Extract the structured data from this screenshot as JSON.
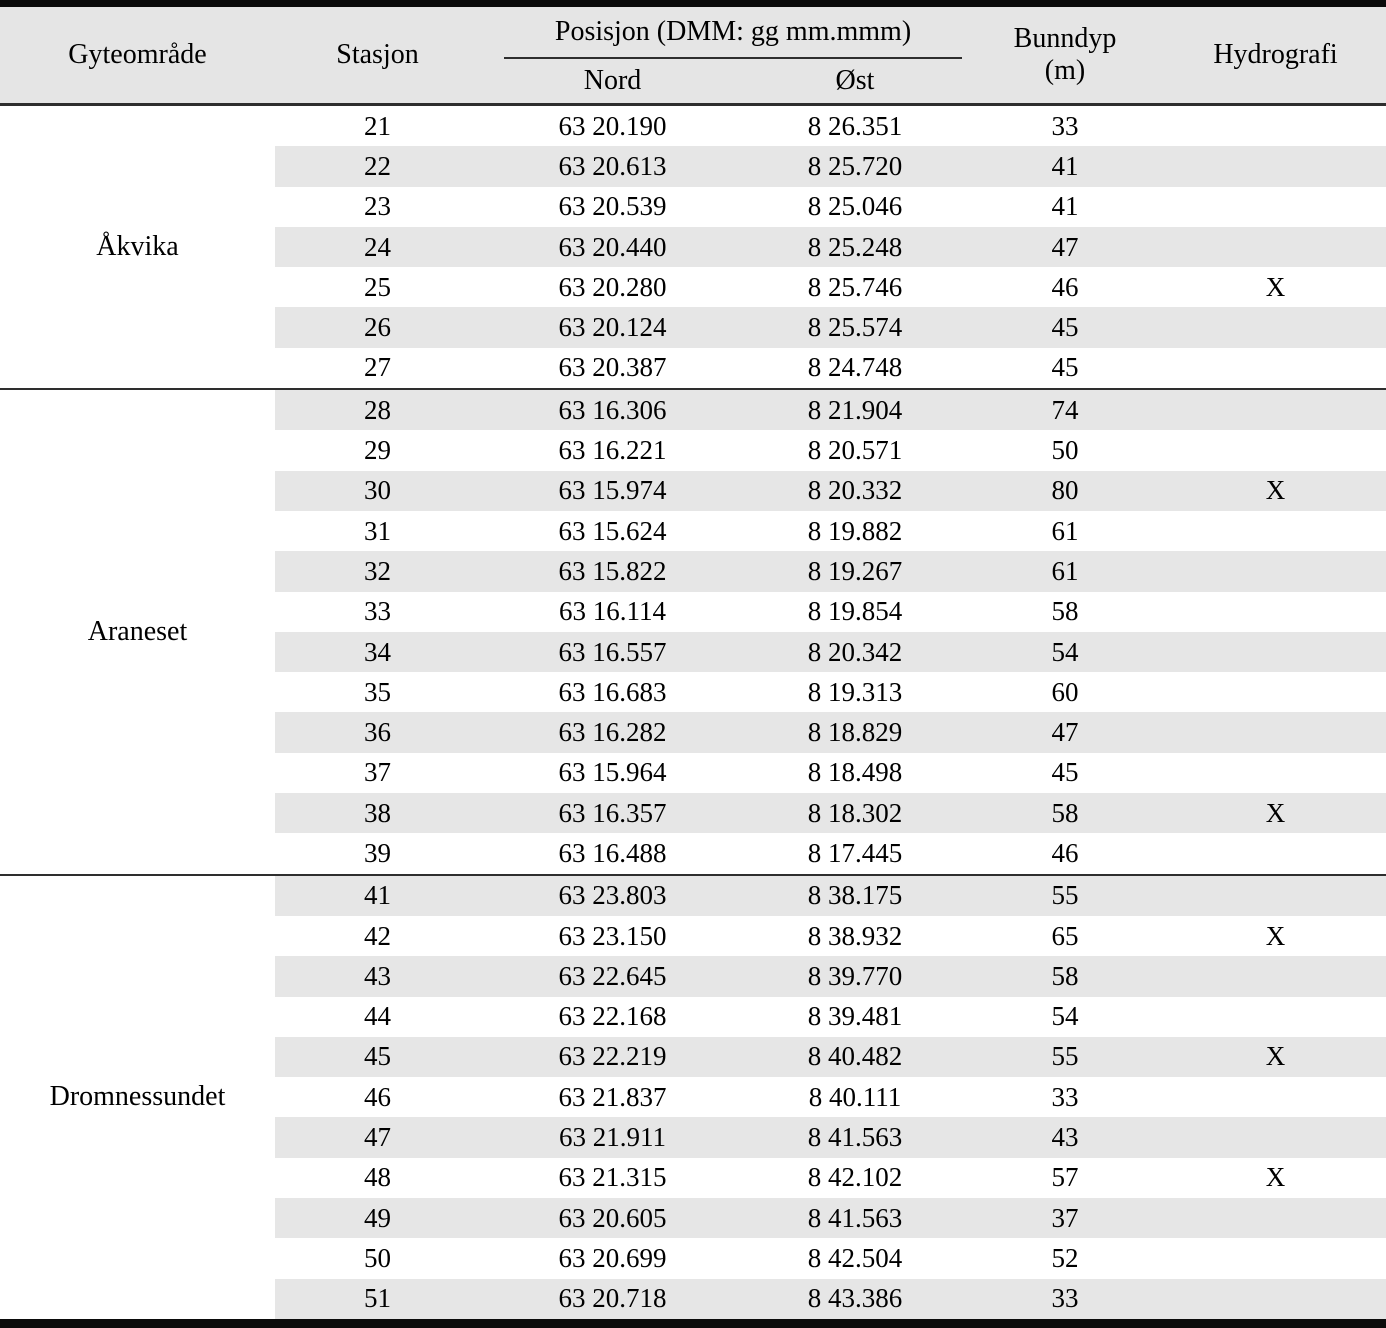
{
  "table": {
    "header": {
      "area": "Gyteområde",
      "station": "Stasjon",
      "position": "Posisjon (DMM: gg mm.mmm)",
      "north": "Nord",
      "east": "Øst",
      "depth_line1": "Bunndyp",
      "depth_line2": "(m)",
      "hydrography": "Hydrografi"
    },
    "colors": {
      "row_shade": "#e6e6e6",
      "header_bg": "#e5e5e5",
      "rule_heavy": "#0b0b0b",
      "rule_medium": "#2e2e2e"
    },
    "groups": [
      {
        "id": "akvika",
        "area": "Åkvika",
        "rows": [
          {
            "station": "21",
            "nord": "63 20.190",
            "ost": "8 26.351",
            "depth": "33",
            "hydro": ""
          },
          {
            "station": "22",
            "nord": "63 20.613",
            "ost": "8 25.720",
            "depth": "41",
            "hydro": ""
          },
          {
            "station": "23",
            "nord": "63 20.539",
            "ost": "8 25.046",
            "depth": "41",
            "hydro": ""
          },
          {
            "station": "24",
            "nord": "63 20.440",
            "ost": "8 25.248",
            "depth": "47",
            "hydro": ""
          },
          {
            "station": "25",
            "nord": "63 20.280",
            "ost": "8 25.746",
            "depth": "46",
            "hydro": "X"
          },
          {
            "station": "26",
            "nord": "63 20.124",
            "ost": "8 25.574",
            "depth": "45",
            "hydro": ""
          },
          {
            "station": "27",
            "nord": "63 20.387",
            "ost": "8 24.748",
            "depth": "45",
            "hydro": ""
          }
        ]
      },
      {
        "id": "araneset",
        "area": "Araneset",
        "rows": [
          {
            "station": "28",
            "nord": "63 16.306",
            "ost": "8 21.904",
            "depth": "74",
            "hydro": ""
          },
          {
            "station": "29",
            "nord": "63 16.221",
            "ost": "8 20.571",
            "depth": "50",
            "hydro": ""
          },
          {
            "station": "30",
            "nord": "63 15.974",
            "ost": "8 20.332",
            "depth": "80",
            "hydro": "X"
          },
          {
            "station": "31",
            "nord": "63 15.624",
            "ost": "8 19.882",
            "depth": "61",
            "hydro": ""
          },
          {
            "station": "32",
            "nord": "63 15.822",
            "ost": "8 19.267",
            "depth": "61",
            "hydro": ""
          },
          {
            "station": "33",
            "nord": "63 16.114",
            "ost": "8 19.854",
            "depth": "58",
            "hydro": ""
          },
          {
            "station": "34",
            "nord": "63 16.557",
            "ost": "8 20.342",
            "depth": "54",
            "hydro": ""
          },
          {
            "station": "35",
            "nord": "63 16.683",
            "ost": "8 19.313",
            "depth": "60",
            "hydro": ""
          },
          {
            "station": "36",
            "nord": "63 16.282",
            "ost": "8 18.829",
            "depth": "47",
            "hydro": ""
          },
          {
            "station": "37",
            "nord": "63 15.964",
            "ost": "8 18.498",
            "depth": "45",
            "hydro": ""
          },
          {
            "station": "38",
            "nord": "63 16.357",
            "ost": "8 18.302",
            "depth": "58",
            "hydro": "X"
          },
          {
            "station": "39",
            "nord": "63 16.488",
            "ost": "8 17.445",
            "depth": "46",
            "hydro": ""
          }
        ]
      },
      {
        "id": "dromnessundet",
        "area": "Dromnessundet",
        "rows": [
          {
            "station": "41",
            "nord": "63 23.803",
            "ost": "8 38.175",
            "depth": "55",
            "hydro": ""
          },
          {
            "station": "42",
            "nord": "63 23.150",
            "ost": "8 38.932",
            "depth": "65",
            "hydro": "X"
          },
          {
            "station": "43",
            "nord": "63 22.645",
            "ost": "8 39.770",
            "depth": "58",
            "hydro": ""
          },
          {
            "station": "44",
            "nord": "63 22.168",
            "ost": "8 39.481",
            "depth": "54",
            "hydro": ""
          },
          {
            "station": "45",
            "nord": "63 22.219",
            "ost": "8 40.482",
            "depth": "55",
            "hydro": "X"
          },
          {
            "station": "46",
            "nord": "63 21.837",
            "ost": "8 40.111",
            "depth": "33",
            "hydro": ""
          },
          {
            "station": "47",
            "nord": "63 21.911",
            "ost": "8 41.563",
            "depth": "43",
            "hydro": ""
          },
          {
            "station": "48",
            "nord": "63 21.315",
            "ost": "8 42.102",
            "depth": "57",
            "hydro": "X"
          },
          {
            "station": "49",
            "nord": "63 20.605",
            "ost": "8 41.563",
            "depth": "37",
            "hydro": ""
          },
          {
            "station": "50",
            "nord": "63 20.699",
            "ost": "8 42.504",
            "depth": "52",
            "hydro": ""
          },
          {
            "station": "51",
            "nord": "63 20.718",
            "ost": "8 43.386",
            "depth": "33",
            "hydro": ""
          }
        ]
      }
    ]
  }
}
